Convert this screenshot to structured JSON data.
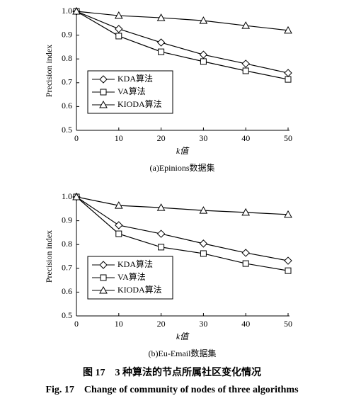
{
  "chart_data": [
    {
      "type": "line",
      "title": "(a)Epinions数据集",
      "xlabel": "k值",
      "ylabel": "Precision index",
      "x": [
        0,
        10,
        20,
        30,
        40,
        50
      ],
      "xlim": [
        0,
        50
      ],
      "xticks": [
        0,
        10,
        20,
        30,
        40,
        50
      ],
      "ylim": [
        0.5,
        1.0
      ],
      "yticks": [
        0.5,
        0.6,
        0.7,
        0.8,
        0.9,
        {
          "value": 1,
          "label": "1.0"
        }
      ],
      "legend": "lower left",
      "series": [
        {
          "name": "KDA算法",
          "color": "#000000",
          "marker": "diamond",
          "values": [
            1.0,
            0.926,
            0.869,
            0.818,
            0.78,
            0.741
          ]
        },
        {
          "name": "VA算法",
          "color": "#000000",
          "marker": "square",
          "values": [
            1.0,
            0.896,
            0.83,
            0.789,
            0.75,
            0.714
          ]
        },
        {
          "name": "KIODA算法",
          "color": "#000000",
          "marker": "triangle",
          "values": [
            1.0,
            0.982,
            0.973,
            0.961,
            0.94,
            0.92
          ]
        }
      ]
    },
    {
      "type": "line",
      "title": "(b)Eu-Email数据集",
      "xlabel": "k值",
      "ylabel": "Precision index",
      "x": [
        0,
        10,
        20,
        30,
        40,
        50
      ],
      "xlim": [
        0,
        50
      ],
      "xticks": [
        0,
        10,
        20,
        30,
        40,
        50
      ],
      "ylim": [
        0.5,
        1.0
      ],
      "yticks": [
        0.5,
        0.6,
        0.7,
        0.8,
        0.9,
        {
          "value": 1,
          "label": "1.0"
        }
      ],
      "legend": "lower left",
      "series": [
        {
          "name": "KDA算法",
          "color": "#000000",
          "marker": "diamond",
          "values": [
            1.0,
            0.881,
            0.845,
            0.804,
            0.765,
            0.732
          ]
        },
        {
          "name": "VA算法",
          "color": "#000000",
          "marker": "square",
          "values": [
            1.0,
            0.845,
            0.789,
            0.762,
            0.72,
            0.69
          ]
        },
        {
          "name": "KIODA算法",
          "color": "#000000",
          "marker": "triangle",
          "values": [
            1.0,
            0.964,
            0.955,
            0.943,
            0.935,
            0.926
          ]
        }
      ]
    }
  ],
  "caption_cn": "图 17　3 种算法的节点所属社区变化情况",
  "caption_en": "Fig. 17　Change of community of nodes of three algorithms"
}
